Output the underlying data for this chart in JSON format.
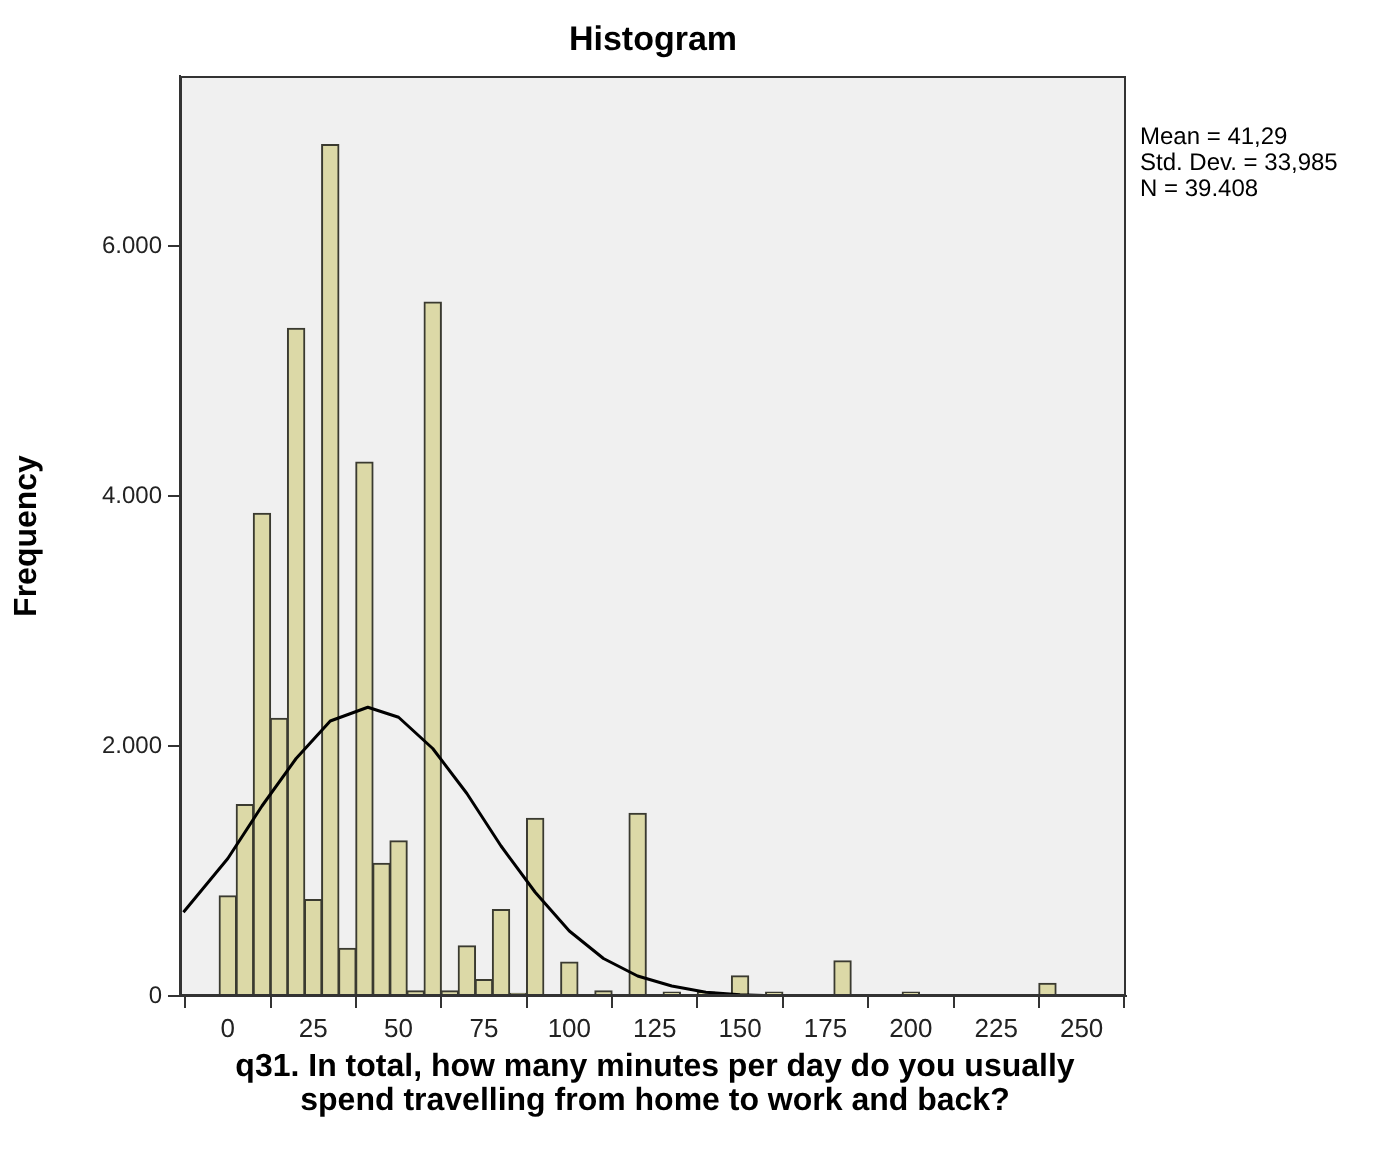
{
  "chart_data": {
    "type": "histogram",
    "title": "Histogram",
    "xlabel": "q31. In total, how many minutes per day do you usually spend travelling from home to work and back?",
    "ylabel": "Frequency",
    "bins": [
      -2.5,
      2.5,
      7.5,
      12.5,
      17.5,
      22.5,
      27.5,
      32.5,
      37.5,
      42.5,
      47.5,
      52.5,
      57.5,
      62.5,
      67.5,
      72.5,
      77.5,
      82.5,
      87.5,
      92.5,
      97.5,
      102.5,
      107.5,
      112.5,
      117.5,
      122.5,
      127.5,
      132.5,
      137.5,
      142.5,
      147.5,
      152.5,
      157.5,
      162.5,
      167.5,
      172.5,
      177.5,
      182.5,
      187.5,
      192.5,
      197.5,
      202.5,
      207.5,
      212.5,
      217.5,
      222.5,
      227.5,
      232.5,
      237.5,
      242.5,
      247.5
    ],
    "values": [
      800,
      1530,
      3860,
      2220,
      5340,
      770,
      6810,
      380,
      4270,
      1060,
      1240,
      40,
      5550,
      40,
      400,
      130,
      690,
      20,
      1420,
      10,
      270,
      0,
      40,
      0,
      1460,
      0,
      30,
      0,
      30,
      0,
      160,
      0,
      30,
      0,
      10,
      0,
      280,
      0,
      0,
      0,
      30,
      0,
      10,
      0,
      0,
      0,
      0,
      0,
      100,
      0
    ],
    "color": "#dcd9a7",
    "series": [
      {
        "type": "line",
        "x": [
          -13,
          0,
          10,
          20,
          30,
          41,
          50,
          60,
          70,
          80,
          90,
          100,
          110,
          120,
          130,
          140,
          150,
          160
        ],
        "values": [
          670,
          1100,
          1520,
          1900,
          2200,
          2310,
          2230,
          1980,
          1620,
          1200,
          830,
          520,
          300,
          160,
          80,
          30,
          10,
          0
        ],
        "color": "#000000"
      }
    ],
    "marker": "none",
    "xlim": [
      -14,
      263
    ],
    "xticks": [
      0,
      25,
      50,
      75,
      100,
      125,
      150,
      175,
      200,
      225,
      250
    ],
    "ylim": [
      0,
      7360
    ],
    "yticks": [
      0,
      {
        "value": 2000,
        "label": "2.000"
      },
      {
        "value": 4000,
        "label": "4.000"
      },
      {
        "value": 6000,
        "label": "6.000"
      }
    ],
    "annotations": [
      "Mean = 41,29",
      "Std. Dev. = 33,985",
      "N = 39.408"
    ]
  }
}
